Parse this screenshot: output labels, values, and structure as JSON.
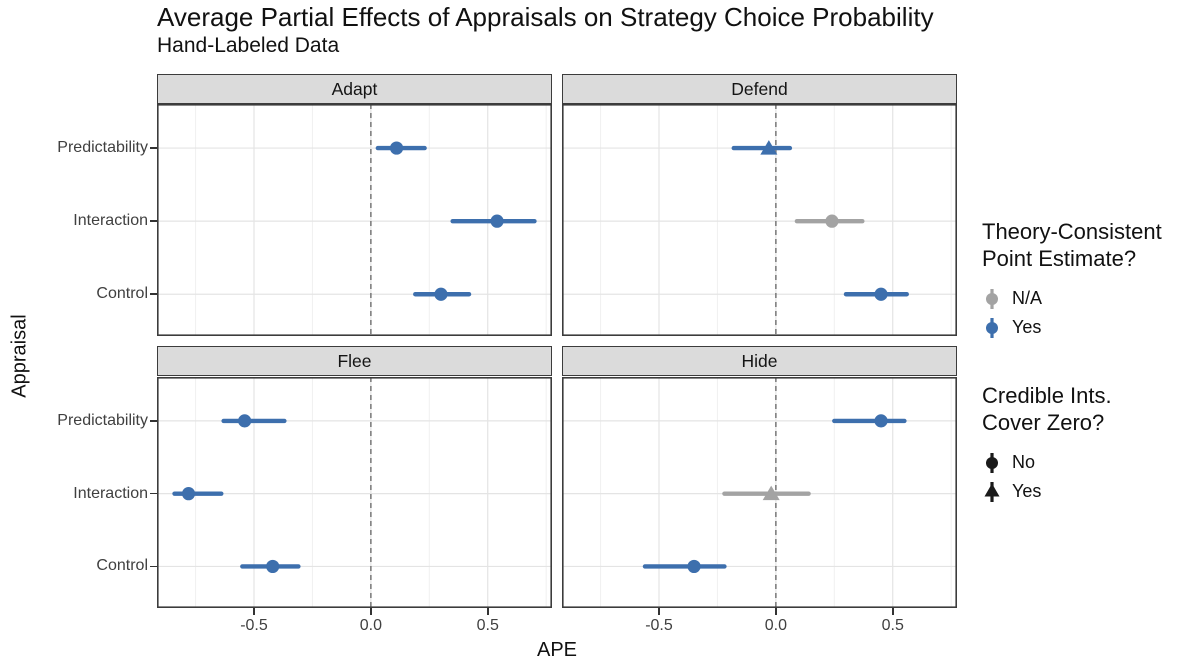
{
  "colors": {
    "blue": "#3D6FAD",
    "gray": "#A3A3A3",
    "black": "#1A1A1A",
    "strip_fill": "#DBDBDB",
    "grid_major": "#E4E4E4",
    "grid_minor": "#F0F0F0",
    "zero_line": "#7E7E7E",
    "panel_border": "#3C3C3C"
  },
  "chart_data": {
    "type": "pointrange-facets",
    "title": "Average Partial Effects of Appraisals on Strategy Choice Probability",
    "subtitle": "Hand-Labeled Data",
    "xlabel": "APE",
    "ylabel": "Appraisal",
    "x_range": [
      -0.915,
      0.775
    ],
    "x_ticks": [
      {
        "value": -0.5,
        "label": "-0.5"
      },
      {
        "value": 0.0,
        "label": "0.0"
      },
      {
        "value": 0.5,
        "label": "0.5"
      }
    ],
    "minor_gridlines": [
      -0.75,
      -0.25,
      0.25,
      0.75
    ],
    "zero_reference_line": 0.0,
    "grid": "on",
    "legend_position": "right",
    "categories": [
      "Predictability",
      "Interaction",
      "Control"
    ],
    "facets": [
      {
        "name": "Adapt",
        "points": [
          {
            "appraisal": "Predictability",
            "estimate": 0.11,
            "ci_lower": 0.03,
            "ci_upper": 0.23,
            "theory_consistent": "Yes",
            "ci_covers_zero": "No"
          },
          {
            "appraisal": "Interaction",
            "estimate": 0.54,
            "ci_lower": 0.35,
            "ci_upper": 0.7,
            "theory_consistent": "Yes",
            "ci_covers_zero": "No"
          },
          {
            "appraisal": "Control",
            "estimate": 0.3,
            "ci_lower": 0.19,
            "ci_upper": 0.42,
            "theory_consistent": "Yes",
            "ci_covers_zero": "No"
          }
        ]
      },
      {
        "name": "Defend",
        "points": [
          {
            "appraisal": "Predictability",
            "estimate": -0.03,
            "ci_lower": -0.18,
            "ci_upper": 0.06,
            "theory_consistent": "Yes",
            "ci_covers_zero": "Yes"
          },
          {
            "appraisal": "Interaction",
            "estimate": 0.24,
            "ci_lower": 0.09,
            "ci_upper": 0.37,
            "theory_consistent": "N/A",
            "ci_covers_zero": "No"
          },
          {
            "appraisal": "Control",
            "estimate": 0.45,
            "ci_lower": 0.3,
            "ci_upper": 0.56,
            "theory_consistent": "Yes",
            "ci_covers_zero": "No"
          }
        ]
      },
      {
        "name": "Flee",
        "points": [
          {
            "appraisal": "Predictability",
            "estimate": -0.54,
            "ci_lower": -0.63,
            "ci_upper": -0.37,
            "theory_consistent": "Yes",
            "ci_covers_zero": "No"
          },
          {
            "appraisal": "Interaction",
            "estimate": -0.78,
            "ci_lower": -0.84,
            "ci_upper": -0.64,
            "theory_consistent": "Yes",
            "ci_covers_zero": "No"
          },
          {
            "appraisal": "Control",
            "estimate": -0.42,
            "ci_lower": -0.55,
            "ci_upper": -0.31,
            "theory_consistent": "Yes",
            "ci_covers_zero": "No"
          }
        ]
      },
      {
        "name": "Hide",
        "points": [
          {
            "appraisal": "Predictability",
            "estimate": 0.45,
            "ci_lower": 0.25,
            "ci_upper": 0.55,
            "theory_consistent": "Yes",
            "ci_covers_zero": "No"
          },
          {
            "appraisal": "Interaction",
            "estimate": -0.02,
            "ci_lower": -0.22,
            "ci_upper": 0.14,
            "theory_consistent": "N/A",
            "ci_covers_zero": "Yes"
          },
          {
            "appraisal": "Control",
            "estimate": -0.35,
            "ci_lower": -0.56,
            "ci_upper": -0.22,
            "theory_consistent": "Yes",
            "ci_covers_zero": "No"
          }
        ]
      }
    ],
    "legends": [
      {
        "title": "Theory-Consistent\nPoint Estimate?",
        "entries": [
          {
            "label": "N/A",
            "color": "gray",
            "shape": "circle"
          },
          {
            "label": "Yes",
            "color": "blue",
            "shape": "circle"
          }
        ]
      },
      {
        "title": "Credible Ints.\nCover Zero?",
        "entries": [
          {
            "label": "No",
            "color": "black",
            "shape": "circle"
          },
          {
            "label": "Yes",
            "color": "black",
            "shape": "triangle"
          }
        ]
      }
    ]
  }
}
